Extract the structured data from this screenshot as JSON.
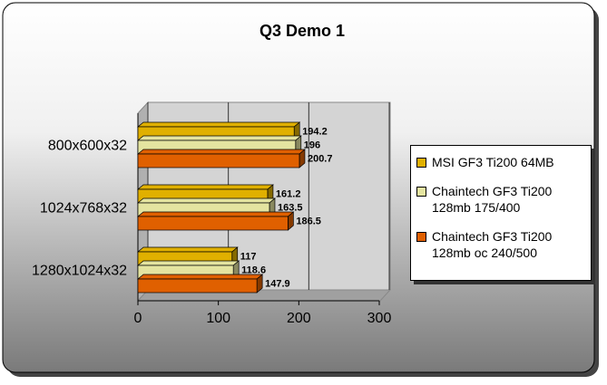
{
  "chart_data": {
    "type": "bar",
    "orientation": "horizontal",
    "title": "Q3 Demo 1",
    "categories": [
      "800x600x32",
      "1024x768x32",
      "1280x1024x32"
    ],
    "series": [
      {
        "name": "MSI GF3 Ti200 64MB",
        "color": "#e0b000",
        "values": [
          194.2,
          161.2,
          117
        ]
      },
      {
        "name": "Chaintech GF3 Ti200 128mb 175/400",
        "color": "#e4e4a0",
        "values": [
          196,
          163.5,
          118.6
        ]
      },
      {
        "name": "Chaintech GF3 Ti200 128mb oc 240/500",
        "color": "#e06000",
        "values": [
          200.7,
          186.5,
          147.9
        ]
      }
    ],
    "xlim": [
      0,
      300
    ],
    "xticks": [
      0,
      100,
      200,
      300
    ],
    "grid": true,
    "legend": "right"
  }
}
